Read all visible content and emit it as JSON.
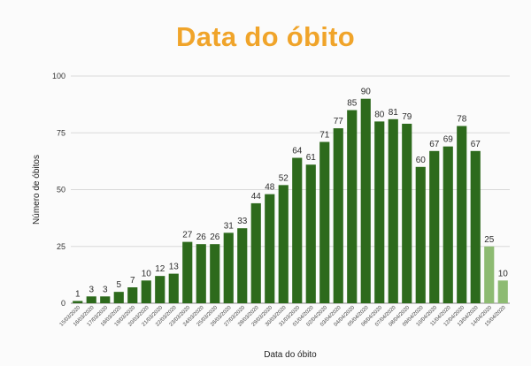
{
  "chart_data": {
    "type": "bar",
    "title": "Data do óbito",
    "xlabel": "Data do óbito",
    "ylabel": "Número de óbitos",
    "ylim": [
      0,
      100
    ],
    "yticks": [
      0,
      25,
      50,
      75,
      100
    ],
    "grid": true,
    "legend": "none",
    "colors": {
      "main": "#2d6a1c",
      "light": "#8dbb72",
      "title": "#f0a42a"
    },
    "categories": [
      "15/03/2020",
      "16/03/2020",
      "17/03/2020",
      "18/03/2020",
      "19/03/2020",
      "20/03/2020",
      "21/03/2020",
      "22/03/2020",
      "23/03/2020",
      "24/03/2020",
      "25/03/2020",
      "26/03/2020",
      "27/03/2020",
      "28/03/2020",
      "29/03/2020",
      "30/03/2020",
      "31/03/2020",
      "01/04/2020",
      "02/04/2020",
      "03/04/2020",
      "04/04/2020",
      "05/04/2020",
      "06/04/2020",
      "07/04/2020",
      "08/04/2020",
      "09/04/2020",
      "10/04/2020",
      "11/04/2020",
      "12/04/2020",
      "13/04/2020",
      "14/04/2020",
      "15/04/2020"
    ],
    "values": [
      1,
      3,
      3,
      5,
      7,
      10,
      12,
      13,
      27,
      26,
      26,
      31,
      33,
      44,
      48,
      52,
      64,
      61,
      71,
      77,
      85,
      90,
      80,
      81,
      79,
      60,
      67,
      69,
      78,
      67,
      25,
      10
    ],
    "light_from_index": 30
  }
}
